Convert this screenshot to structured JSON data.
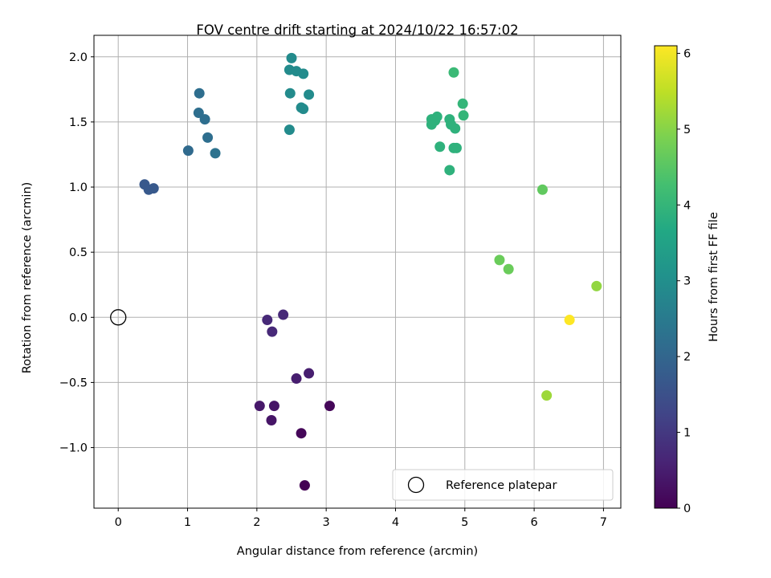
{
  "chart_data": {
    "type": "scatter",
    "title": "FOV centre drift starting at 2024/10/22 16:57:02",
    "xlabel": "Angular distance from reference (arcmin)",
    "ylabel": "Rotation from reference (arcmin)",
    "xlim": [
      -0.35,
      7.25
    ],
    "ylim": [
      -1.465,
      2.165
    ],
    "xticks": [
      0,
      1,
      2,
      3,
      4,
      5,
      6,
      7
    ],
    "xtick_labels": [
      "0",
      "1",
      "2",
      "3",
      "4",
      "5",
      "6",
      "7"
    ],
    "yticks": [
      -1.0,
      -0.5,
      0.0,
      0.5,
      1.0,
      1.5,
      2.0
    ],
    "ytick_labels": [
      "−1.0",
      "−0.5",
      "0.0",
      "0.5",
      "1.0",
      "1.5",
      "2.0"
    ],
    "grid": true,
    "legend": {
      "position": "lower-right",
      "entries": [
        "Reference platepar"
      ]
    },
    "colorbar": {
      "label": "Hours from first FF file",
      "colormap": "viridis",
      "range": [
        0,
        6.1
      ],
      "ticks": [
        0,
        1,
        2,
        3,
        4,
        5,
        6
      ],
      "tick_labels": [
        "0",
        "1",
        "2",
        "3",
        "4",
        "5",
        "6"
      ]
    },
    "reference_point": {
      "x": 0,
      "y": 0
    },
    "points": [
      {
        "x": 2.15,
        "y": -0.02,
        "h": 0.7
      },
      {
        "x": 2.22,
        "y": -0.11,
        "h": 0.7
      },
      {
        "x": 2.38,
        "y": 0.02,
        "h": 0.7
      },
      {
        "x": 2.57,
        "y": -0.47,
        "h": 0.5
      },
      {
        "x": 2.75,
        "y": -0.43,
        "h": 0.5
      },
      {
        "x": 2.04,
        "y": -0.68,
        "h": 0.4
      },
      {
        "x": 2.25,
        "y": -0.68,
        "h": 0.35
      },
      {
        "x": 2.21,
        "y": -0.79,
        "h": 0.35
      },
      {
        "x": 2.64,
        "y": -0.89,
        "h": 0.1
      },
      {
        "x": 3.05,
        "y": -0.68,
        "h": 0.1
      },
      {
        "x": 2.69,
        "y": -1.29,
        "h": 0.0
      },
      {
        "x": 0.38,
        "y": 1.02,
        "h": 1.7
      },
      {
        "x": 0.44,
        "y": 0.98,
        "h": 1.7
      },
      {
        "x": 0.51,
        "y": 0.99,
        "h": 1.7
      },
      {
        "x": 1.01,
        "y": 1.28,
        "h": 2.1
      },
      {
        "x": 1.17,
        "y": 1.72,
        "h": 2.2
      },
      {
        "x": 1.16,
        "y": 1.57,
        "h": 2.2
      },
      {
        "x": 1.25,
        "y": 1.52,
        "h": 2.2
      },
      {
        "x": 1.29,
        "y": 1.38,
        "h": 2.2
      },
      {
        "x": 1.4,
        "y": 1.26,
        "h": 2.3
      },
      {
        "x": 2.5,
        "y": 1.99,
        "h": 2.9
      },
      {
        "x": 2.47,
        "y": 1.9,
        "h": 2.9
      },
      {
        "x": 2.57,
        "y": 1.89,
        "h": 2.9
      },
      {
        "x": 2.67,
        "y": 1.87,
        "h": 2.9
      },
      {
        "x": 2.48,
        "y": 1.72,
        "h": 2.9
      },
      {
        "x": 2.75,
        "y": 1.71,
        "h": 2.9
      },
      {
        "x": 2.64,
        "y": 1.61,
        "h": 2.9
      },
      {
        "x": 2.67,
        "y": 1.6,
        "h": 2.9
      },
      {
        "x": 2.47,
        "y": 1.44,
        "h": 2.9
      },
      {
        "x": 4.84,
        "y": 1.88,
        "h": 4.1
      },
      {
        "x": 4.97,
        "y": 1.64,
        "h": 4.0
      },
      {
        "x": 4.98,
        "y": 1.55,
        "h": 4.0
      },
      {
        "x": 4.52,
        "y": 1.52,
        "h": 3.9
      },
      {
        "x": 4.6,
        "y": 1.54,
        "h": 3.9
      },
      {
        "x": 4.57,
        "y": 1.51,
        "h": 3.9
      },
      {
        "x": 4.52,
        "y": 1.48,
        "h": 3.9
      },
      {
        "x": 4.78,
        "y": 1.52,
        "h": 3.9
      },
      {
        "x": 4.8,
        "y": 1.48,
        "h": 3.9
      },
      {
        "x": 4.86,
        "y": 1.45,
        "h": 3.9
      },
      {
        "x": 4.64,
        "y": 1.31,
        "h": 3.9
      },
      {
        "x": 4.84,
        "y": 1.3,
        "h": 3.9
      },
      {
        "x": 4.88,
        "y": 1.3,
        "h": 3.9
      },
      {
        "x": 4.78,
        "y": 1.13,
        "h": 3.9
      },
      {
        "x": 6.12,
        "y": 0.98,
        "h": 4.6
      },
      {
        "x": 5.5,
        "y": 0.44,
        "h": 4.7
      },
      {
        "x": 5.63,
        "y": 0.37,
        "h": 4.7
      },
      {
        "x": 6.9,
        "y": 0.24,
        "h": 5.1
      },
      {
        "x": 6.18,
        "y": -0.6,
        "h": 5.2
      },
      {
        "x": 6.51,
        "y": -0.02,
        "h": 6.1
      }
    ]
  }
}
